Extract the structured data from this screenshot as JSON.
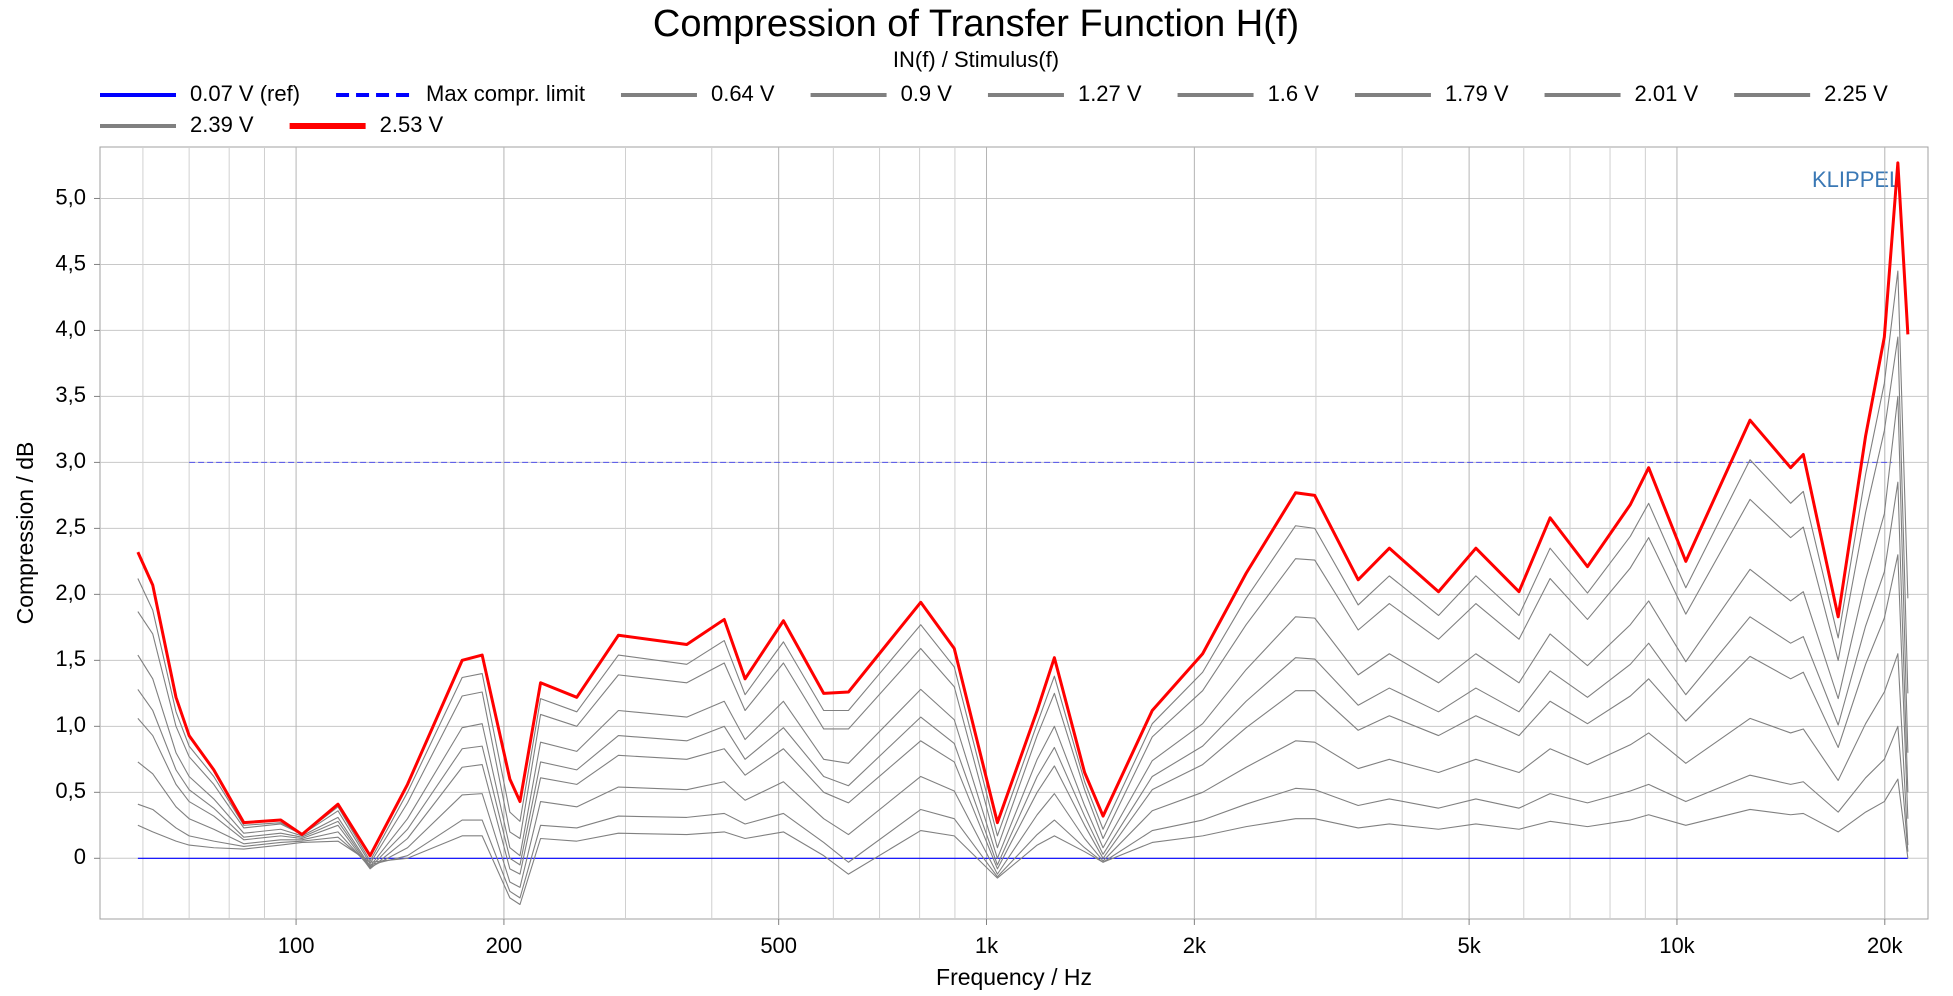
{
  "chart_data": {
    "type": "line",
    "title": "Compression of Transfer Function H(f)",
    "subtitle": "IN(f) / Stimulus(f)",
    "xlabel": "Frequency / Hz",
    "ylabel": "Compression / dB",
    "annotation": "KLIPPEL",
    "xscale": "log",
    "grid": true,
    "legend": "top",
    "xlim": [
      52,
      23100
    ],
    "ylim": [
      -0.46,
      5.39
    ],
    "xticks": [
      100,
      200,
      500,
      {
        "value": 1000,
        "label": "1k"
      },
      {
        "value": 2000,
        "label": "2k"
      },
      {
        "value": 5000,
        "label": "5k"
      },
      {
        "value": 10000,
        "label": "10k"
      },
      {
        "value": 20000,
        "label": "20k"
      }
    ],
    "xminorticks": [
      60,
      70,
      80,
      90,
      300,
      400,
      600,
      700,
      800,
      900,
      3000,
      4000,
      6000,
      7000,
      8000,
      9000
    ],
    "yticks": [
      0,
      {
        "value": 0.5,
        "label": "0,5"
      },
      {
        "value": 1,
        "label": "1,0"
      },
      {
        "value": 1.5,
        "label": "1,5"
      },
      {
        "value": 2,
        "label": "2,0"
      },
      {
        "value": 2.5,
        "label": "2,5"
      },
      {
        "value": 3,
        "label": "3,0"
      },
      {
        "value": 3.5,
        "label": "3,5"
      },
      {
        "value": 4,
        "label": "4,0"
      },
      {
        "value": 4.5,
        "label": "4,5"
      },
      {
        "value": 5,
        "label": "5,0"
      }
    ],
    "x": [
      59,
      62,
      67,
      70,
      76,
      84,
      95,
      102,
      115,
      128,
      145,
      174,
      186,
      204,
      211,
      226,
      255,
      293,
      368,
      417,
      447,
      508,
      581,
      631,
      803,
      898,
      1037,
      1184,
      1254,
      1387,
      1475,
      1738,
      2056,
      2377,
      2803,
      2988,
      3454,
      3832,
      4515,
      5114,
      5905,
      6550,
      7420,
      8560,
      9100,
      10300,
      12760,
      14610,
      15240,
      17120,
      18760,
      19970,
      20890,
      21600
    ],
    "series": [
      {
        "name": "0.07 V (ref)",
        "color": "#0000ff",
        "x": [
          59,
          21600
        ],
        "values": [
          0,
          0
        ]
      },
      {
        "name": "Max compr. limit",
        "color": "#0000ff",
        "linestyle": "dashed",
        "x": [
          70,
          20500
        ],
        "values": [
          3,
          3
        ]
      },
      {
        "name": "0.64 V",
        "color": "#808080",
        "values": [
          0.25,
          0.2,
          0.13,
          0.1,
          0.08,
          0.07,
          0.1,
          0.12,
          0.13,
          -0.03,
          0,
          0.17,
          0.17,
          -0.3,
          -0.35,
          0.15,
          0.13,
          0.19,
          0.18,
          0.2,
          0.15,
          0.2,
          0.02,
          -0.12,
          0.21,
          0.17,
          -0.15,
          0.1,
          0.17,
          0.05,
          -0.03,
          0.12,
          0.17,
          0.24,
          0.3,
          0.3,
          0.23,
          0.26,
          0.22,
          0.26,
          0.22,
          0.28,
          0.24,
          0.29,
          0.33,
          0.25,
          0.37,
          0.33,
          0.34,
          0.2,
          0.35,
          0.43,
          0.6,
          0
        ]
      },
      {
        "name": "0.9 V",
        "color": "#808080",
        "values": [
          0.41,
          0.37,
          0.23,
          0.17,
          0.13,
          0.09,
          0.12,
          0.13,
          0.16,
          -0.05,
          0.02,
          0.29,
          0.29,
          -0.25,
          -0.3,
          0.25,
          0.23,
          0.32,
          0.31,
          0.34,
          0.26,
          0.34,
          0.12,
          -0.03,
          0.37,
          0.3,
          -0.14,
          0.18,
          0.29,
          0.08,
          -0.03,
          0.21,
          0.29,
          0.41,
          0.53,
          0.52,
          0.4,
          0.45,
          0.38,
          0.45,
          0.38,
          0.49,
          0.42,
          0.51,
          0.56,
          0.43,
          0.63,
          0.56,
          0.58,
          0.35,
          0.61,
          0.75,
          1.0,
          0.05
        ]
      },
      {
        "name": "1.27 V",
        "color": "#808080",
        "values": [
          0.73,
          0.64,
          0.39,
          0.3,
          0.22,
          0.11,
          0.14,
          0.14,
          0.2,
          -0.07,
          0.08,
          0.48,
          0.49,
          -0.18,
          -0.22,
          0.43,
          0.39,
          0.54,
          0.52,
          0.58,
          0.44,
          0.58,
          0.3,
          0.18,
          0.62,
          0.51,
          -0.12,
          0.33,
          0.49,
          0.15,
          -0.02,
          0.36,
          0.5,
          0.69,
          0.89,
          0.88,
          0.68,
          0.75,
          0.65,
          0.75,
          0.65,
          0.83,
          0.71,
          0.86,
          0.95,
          0.72,
          1.06,
          0.95,
          0.98,
          0.59,
          1.02,
          1.26,
          1.55,
          0.1
        ]
      },
      {
        "name": "1.6 V",
        "color": "#808080",
        "values": [
          1.06,
          0.93,
          0.56,
          0.43,
          0.32,
          0.14,
          0.17,
          0.15,
          0.25,
          -0.08,
          0.15,
          0.69,
          0.71,
          -0.08,
          -0.12,
          0.61,
          0.56,
          0.78,
          0.75,
          0.83,
          0.63,
          0.83,
          0.5,
          0.42,
          0.89,
          0.73,
          -0.08,
          0.5,
          0.7,
          0.25,
          0,
          0.52,
          0.71,
          0.99,
          1.27,
          1.27,
          0.97,
          1.08,
          0.93,
          1.08,
          0.93,
          1.19,
          1.02,
          1.23,
          1.36,
          1.04,
          1.53,
          1.36,
          1.41,
          0.84,
          1.47,
          1.82,
          2.3,
          0.3
        ]
      },
      {
        "name": "1.79 V",
        "color": "#808080",
        "values": [
          1.28,
          1.12,
          0.67,
          0.52,
          0.38,
          0.16,
          0.19,
          0.16,
          0.28,
          -0.07,
          0.22,
          0.83,
          0.85,
          0,
          -0.05,
          0.73,
          0.67,
          0.93,
          0.89,
          1.0,
          0.75,
          0.99,
          0.62,
          0.55,
          1.07,
          0.87,
          -0.05,
          0.62,
          0.84,
          0.32,
          0.03,
          0.62,
          0.85,
          1.19,
          1.52,
          1.51,
          1.16,
          1.29,
          1.11,
          1.29,
          1.11,
          1.42,
          1.22,
          1.47,
          1.63,
          1.24,
          1.83,
          1.63,
          1.68,
          1.01,
          1.76,
          2.17,
          2.85,
          0.5
        ]
      },
      {
        "name": "2.01 V",
        "color": "#808080",
        "values": [
          1.54,
          1.36,
          0.8,
          0.62,
          0.45,
          0.19,
          0.22,
          0.17,
          0.31,
          -0.06,
          0.3,
          0.99,
          1.02,
          0.08,
          0.02,
          0.88,
          0.81,
          1.12,
          1.07,
          1.19,
          0.9,
          1.19,
          0.75,
          0.72,
          1.28,
          1.05,
          0,
          0.75,
          1.0,
          0.4,
          0.08,
          0.74,
          1.02,
          1.43,
          1.83,
          1.82,
          1.39,
          1.55,
          1.33,
          1.55,
          1.33,
          1.7,
          1.46,
          1.77,
          1.95,
          1.49,
          2.19,
          1.95,
          2.02,
          1.21,
          2.11,
          2.61,
          3.5,
          0.8
        ]
      },
      {
        "name": "2.25 V",
        "color": "#808080",
        "values": [
          1.87,
          1.7,
          1.0,
          0.77,
          0.56,
          0.23,
          0.26,
          0.18,
          0.36,
          -0.04,
          0.42,
          1.23,
          1.26,
          0.2,
          0.15,
          1.09,
          1.0,
          1.39,
          1.33,
          1.48,
          1.12,
          1.48,
          0.98,
          0.98,
          1.59,
          1.3,
          0.08,
          0.93,
          1.25,
          0.52,
          0.15,
          0.92,
          1.27,
          1.77,
          2.27,
          2.26,
          1.73,
          1.93,
          1.66,
          1.93,
          1.66,
          2.12,
          1.81,
          2.2,
          2.43,
          1.85,
          2.72,
          2.43,
          2.51,
          1.5,
          2.62,
          3.24,
          3.95,
          1.25
        ]
      },
      {
        "name": "2.39 V",
        "color": "#808080",
        "values": [
          2.12,
          1.88,
          1.11,
          0.85,
          0.62,
          0.25,
          0.27,
          0.18,
          0.39,
          -0.02,
          0.5,
          1.37,
          1.4,
          0.35,
          0.28,
          1.21,
          1.11,
          1.54,
          1.47,
          1.65,
          1.24,
          1.64,
          1.12,
          1.12,
          1.77,
          1.45,
          0.17,
          1.02,
          1.38,
          0.58,
          0.22,
          1.02,
          1.41,
          1.97,
          2.52,
          2.5,
          1.92,
          2.14,
          1.84,
          2.14,
          1.84,
          2.35,
          2.01,
          2.44,
          2.69,
          2.05,
          3.02,
          2.69,
          2.78,
          1.67,
          2.91,
          3.6,
          4.45,
          1.97
        ]
      },
      {
        "name": "2.53 V",
        "color": "#ff0000",
        "linewidth": 3,
        "values": [
          2.32,
          2.07,
          1.22,
          0.93,
          0.67,
          0.27,
          0.29,
          0.18,
          0.41,
          0.02,
          0.56,
          1.5,
          1.54,
          0.6,
          0.43,
          1.33,
          1.22,
          1.69,
          1.62,
          1.81,
          1.36,
          1.8,
          1.25,
          1.26,
          1.94,
          1.59,
          0.27,
          1.12,
          1.52,
          0.65,
          0.32,
          1.12,
          1.55,
          2.16,
          2.77,
          2.75,
          2.11,
          2.35,
          2.02,
          2.35,
          2.02,
          2.58,
          2.21,
          2.68,
          2.96,
          2.25,
          3.32,
          2.96,
          3.06,
          1.83,
          3.2,
          3.95,
          5.27,
          3.97
        ]
      }
    ]
  }
}
